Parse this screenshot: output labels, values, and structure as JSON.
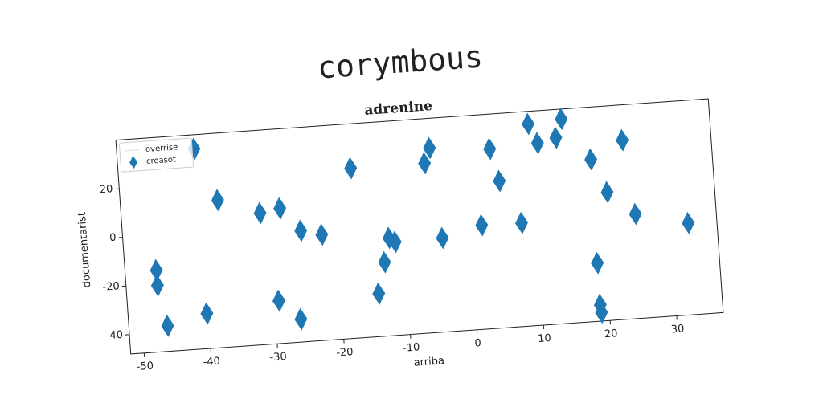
{
  "chart_data": {
    "type": "scatter",
    "suptitle": "corymbous",
    "title": "adrenine",
    "xlabel": "arriba",
    "ylabel": "documentarist",
    "xlim": [
      -52,
      37
    ],
    "ylim": [
      -48,
      40
    ],
    "xticks": [
      -50,
      -40,
      -30,
      -20,
      -10,
      0,
      10,
      20,
      30
    ],
    "yticks": [
      -40,
      -20,
      0,
      20
    ],
    "legend": "upper left",
    "series": [
      {
        "name": "overrise",
        "color": "#1f77b4",
        "x": [],
        "values": []
      },
      {
        "name": "creasot",
        "color": "#1f77b4",
        "x": [
          -40.4,
          -37.4,
          -31.2,
          -28.2,
          -25.3,
          -22.2,
          -17.2,
          -47.3,
          -47.3,
          -46.2,
          -40.2,
          -29.3,
          -26.2,
          -14.3,
          -13.1,
          -12.2,
          -11.3,
          -6.1,
          -5.2,
          -4.2,
          1.8,
          3.8,
          4.9,
          7.8,
          9.8,
          11,
          13.8,
          14.8,
          18.8,
          20.9,
          23.7,
          24.9,
          18.7,
          18.7,
          18.8,
          32.7
        ],
        "values": [
          34.2,
          12.5,
          6,
          7.4,
          -2.4,
          -4.6,
          21.8,
          -14.4,
          -20.7,
          -37.5,
          -33.6,
          -30.4,
          -38.6,
          -30.4,
          -17.7,
          -7.9,
          -9.7,
          21.7,
          27.8,
          -9.4,
          -5.3,
          25.7,
          12.3,
          -5.5,
          34.8,
          26.7,
          28.4,
          35.9,
          18.5,
          4.6,
          25.5,
          -5.1,
          -24.1,
          -41.3,
          -44.5,
          -10.3
        ]
      }
    ]
  }
}
